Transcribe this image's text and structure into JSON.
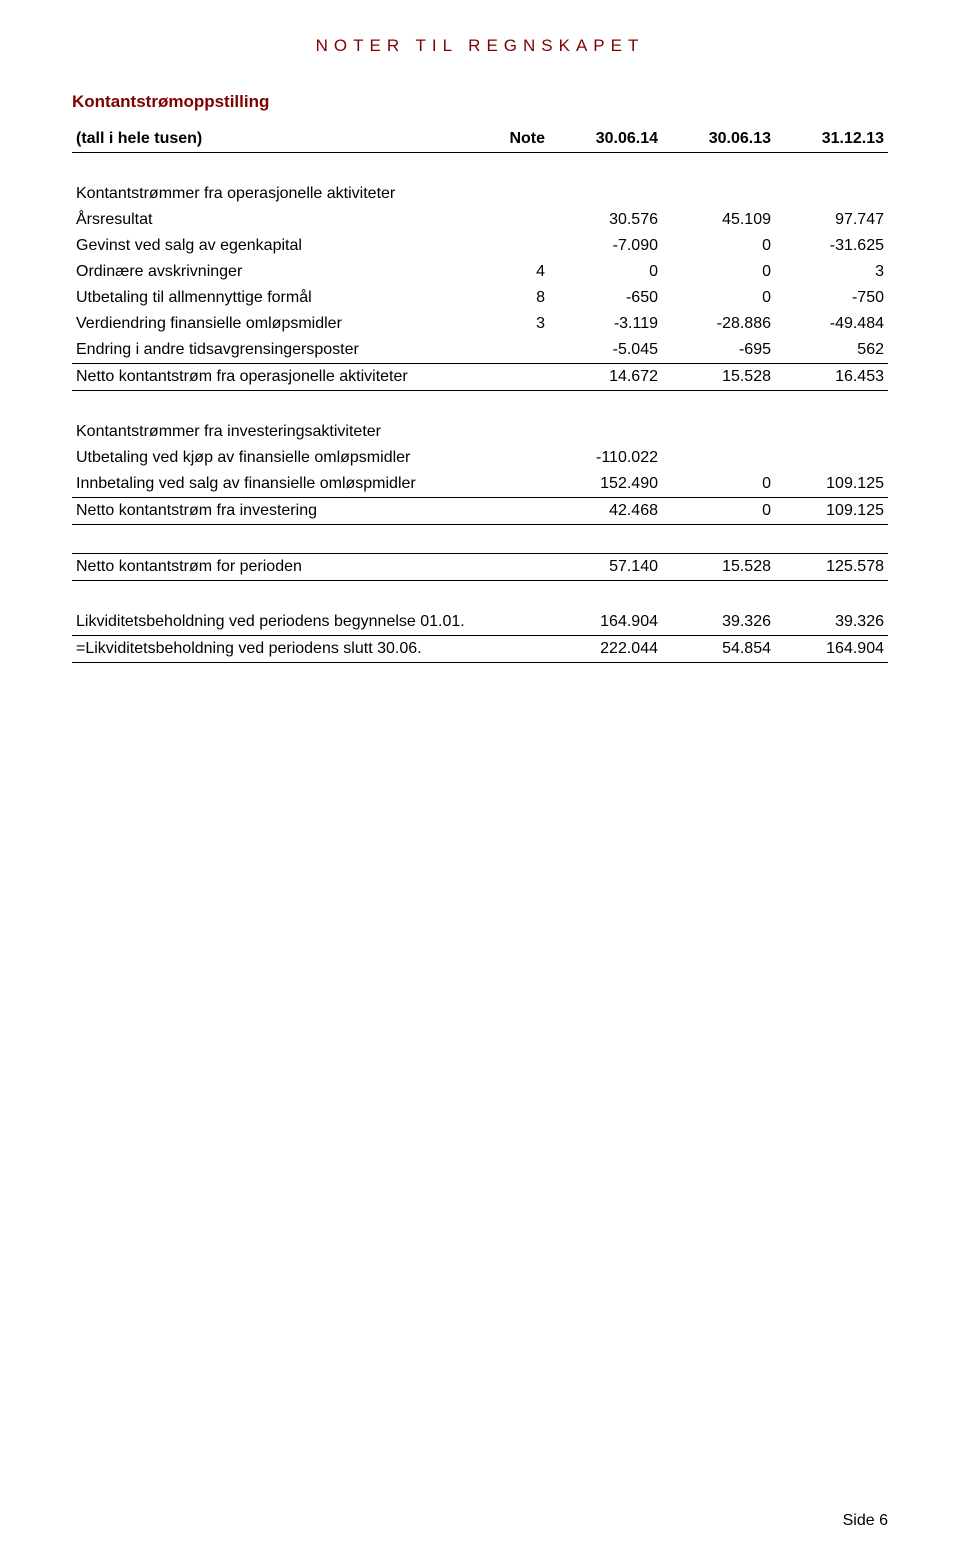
{
  "header": {
    "title": "NOTER TIL REGNSKAPET"
  },
  "section": {
    "title": "Kontantstrømoppstilling"
  },
  "columns": {
    "label": "(tall i hele tusen)",
    "note": "Note",
    "c1": "30.06.14",
    "c2": "30.06.13",
    "c3": "31.12.13"
  },
  "sections": {
    "ops": {
      "heading": "Kontantstrømmer fra operasjonelle aktiviteter",
      "rows": [
        {
          "label": "Årsresultat",
          "note": "",
          "c1": "30.576",
          "c2": "45.109",
          "c3": "97.747"
        },
        {
          "label": "Gevinst ved salg av egenkapital",
          "note": "",
          "c1": "-7.090",
          "c2": "0",
          "c3": "-31.625"
        },
        {
          "label": "Ordinære avskrivninger",
          "note": "4",
          "c1": "0",
          "c2": "0",
          "c3": "3"
        },
        {
          "label": "Utbetaling til allmennyttige formål",
          "note": "8",
          "c1": "-650",
          "c2": "0",
          "c3": "-750"
        },
        {
          "label": "Verdiendring finansielle omløpsmidler",
          "note": "3",
          "c1": "-3.119",
          "c2": "-28.886",
          "c3": "-49.484"
        },
        {
          "label": "Endring i andre tidsavgrensingersposter",
          "note": "",
          "c1": "-5.045",
          "c2": "-695",
          "c3": "562"
        }
      ],
      "total": {
        "label": "Netto kontantstrøm fra operasjonelle aktiviteter",
        "c1": "14.672",
        "c2": "15.528",
        "c3": "16.453"
      }
    },
    "inv": {
      "heading": "Kontantstrømmer fra investeringsaktiviteter",
      "rows": [
        {
          "label": "Utbetaling ved kjøp av finansielle omløpsmidler",
          "note": "",
          "c1": "-110.022",
          "c2": "",
          "c3": ""
        },
        {
          "label": "Innbetaling ved salg av finansielle omløspmidler",
          "note": "",
          "c1": "152.490",
          "c2": "0",
          "c3": "109.125"
        }
      ],
      "total": {
        "label": "Netto kontantstrøm fra investering",
        "c1": "42.468",
        "c2": "0",
        "c3": "109.125"
      }
    },
    "period_total": {
      "label": "Netto kontantstrøm for perioden",
      "c1": "57.140",
      "c2": "15.528",
      "c3": "125.578"
    },
    "liq": {
      "rows": [
        {
          "label": "Likviditetsbeholdning ved periodens begynnelse 01.01.",
          "c1": "164.904",
          "c2": "39.326",
          "c3": "39.326"
        },
        {
          "label": "=Likviditetsbeholdning ved periodens slutt 30.06.",
          "c1": "222.044",
          "c2": "54.854",
          "c3": "164.904"
        }
      ]
    }
  },
  "footer": {
    "page": "Side 6"
  }
}
